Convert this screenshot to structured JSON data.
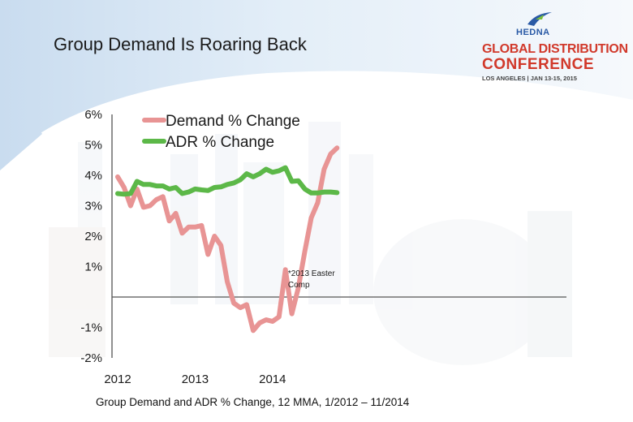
{
  "slide": {
    "title": "Group Demand Is Roaring Back",
    "caption": "Group Demand and ADR % Change, 12 MMA, 1/2012 – 11/2014"
  },
  "logo": {
    "org": "HEDNA",
    "line1": "GLOBAL DISTRIBUTION",
    "line2": "CONFERENCE",
    "subline": "LOS ANGELES  |  JAN 13-15, 2015"
  },
  "colors": {
    "demand": "#e89494",
    "adr": "#5cb848",
    "header_band": "#dbe9f5",
    "logo_red": "#d1392b",
    "logo_blue": "#2a5aa6"
  },
  "chart_data": {
    "type": "line",
    "title": "",
    "xlabel": "",
    "ylabel": "",
    "ylim": [
      -2,
      6
    ],
    "y_tick_labels": [
      "6%",
      "5%",
      "4%",
      "3%",
      "2%",
      "1%",
      "-1%",
      "-2%"
    ],
    "y_tick_values": [
      6,
      5,
      4,
      3,
      2,
      1,
      -1,
      -2
    ],
    "x_tick_labels": [
      "2012",
      "2013",
      "2014"
    ],
    "x_tick_months": [
      0,
      12,
      24
    ],
    "x_months": [
      0,
      1,
      2,
      3,
      4,
      5,
      6,
      7,
      8,
      9,
      10,
      11,
      12,
      13,
      14,
      15,
      16,
      17,
      18,
      19,
      20,
      21,
      22,
      23,
      24,
      25,
      26,
      27,
      28,
      29,
      30,
      31,
      32,
      33,
      34
    ],
    "series": [
      {
        "name": "Demand % Change",
        "values": [
          3.95,
          3.6,
          3.0,
          3.55,
          2.95,
          3.0,
          3.2,
          3.3,
          2.5,
          2.75,
          2.1,
          2.3,
          2.3,
          2.35,
          1.4,
          2.0,
          1.7,
          0.5,
          -0.2,
          -0.35,
          -0.25,
          -1.1,
          -0.85,
          -0.75,
          -0.8,
          -0.65,
          0.9,
          -0.55,
          0.3,
          1.5,
          2.6,
          3.1,
          4.2,
          4.7,
          4.9
        ]
      },
      {
        "name": "ADR % Change",
        "values": [
          3.4,
          3.38,
          3.4,
          3.8,
          3.7,
          3.7,
          3.65,
          3.65,
          3.55,
          3.6,
          3.4,
          3.45,
          3.55,
          3.52,
          3.5,
          3.6,
          3.62,
          3.7,
          3.75,
          3.85,
          4.05,
          3.95,
          4.05,
          4.2,
          4.1,
          4.15,
          4.25,
          3.8,
          3.82,
          3.55,
          3.42,
          3.42,
          3.45,
          3.45,
          3.43
        ]
      }
    ],
    "legend": [
      "Demand % Change",
      "ADR % Change"
    ],
    "legend_position": "top-left",
    "annotation": {
      "lines": [
        "*2013 Easter",
        "Comp"
      ],
      "month": 26.4,
      "value": 0.7
    }
  }
}
